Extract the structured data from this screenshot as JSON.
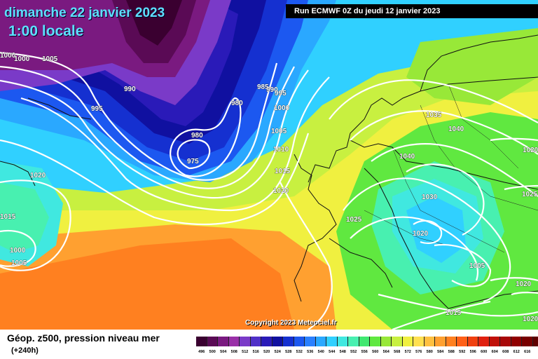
{
  "header": {
    "date_line": "dimanche 22 janvier 2023",
    "time_line": "1:00 locale",
    "run_info": "Run ECMWF 0Z du jeudi 12 janvier 2023"
  },
  "copyright": "Copyright 2023 Meteociel.fr",
  "footer": {
    "title": "Géop. z500, pression niveau mer",
    "subtitle": "(+240h)"
  },
  "isobar_labels": {
    "l1000a": "1000",
    "l1000b": "1000",
    "l1005a": "1005",
    "l990": "990",
    "l995a": "995",
    "l985": "985",
    "l990b": "990",
    "l995b": "995",
    "l980a": "980",
    "l980b": "980",
    "l975": "975",
    "l1000c": "1000",
    "l1005b": "1005",
    "l1010": "1010",
    "l1015a": "1015",
    "l1020a": "1020",
    "l1020w": "1020",
    "l1015w": "1015",
    "l1000w": "1000",
    "l1005w": "1005",
    "l1035": "1035",
    "l1040a": "1040",
    "l1040b": "1040",
    "l1030": "1030",
    "l1025a": "1025",
    "l1020b": "1020",
    "l1005c": "1005",
    "l1020c": "1020",
    "l1015b": "1015",
    "l1025b": "1025",
    "l1020d": "1020",
    "l1020e": "1020"
  },
  "colors": {
    "scale": [
      "#3a0030",
      "#5a0a55",
      "#7a1a80",
      "#9a30a8",
      "#7a3ac8",
      "#5030c8",
      "#2a1ab8",
      "#1010a0",
      "#1530d0",
      "#1c58f0",
      "#2a80ff",
      "#2aa8ff",
      "#30d0ff",
      "#40e8e0",
      "#48f0b0",
      "#40e870",
      "#60e840",
      "#98e838",
      "#c8f040",
      "#f0f040",
      "#ffe050",
      "#ffc040",
      "#ffa030",
      "#ff8020",
      "#ff6018",
      "#f04010",
      "#e02010",
      "#c01008",
      "#a80808",
      "#900000",
      "#780000",
      "#600000",
      "#2a1a1a"
    ]
  },
  "scale_labels": [
    "496",
    "500",
    "504",
    "508",
    "512",
    "516",
    "520",
    "524",
    "528",
    "532",
    "536",
    "540",
    "544",
    "548",
    "552",
    "556",
    "560",
    "564",
    "568",
    "572",
    "576",
    "580",
    "584",
    "588",
    "592",
    "596",
    "600",
    "604",
    "608",
    "612",
    "616"
  ]
}
